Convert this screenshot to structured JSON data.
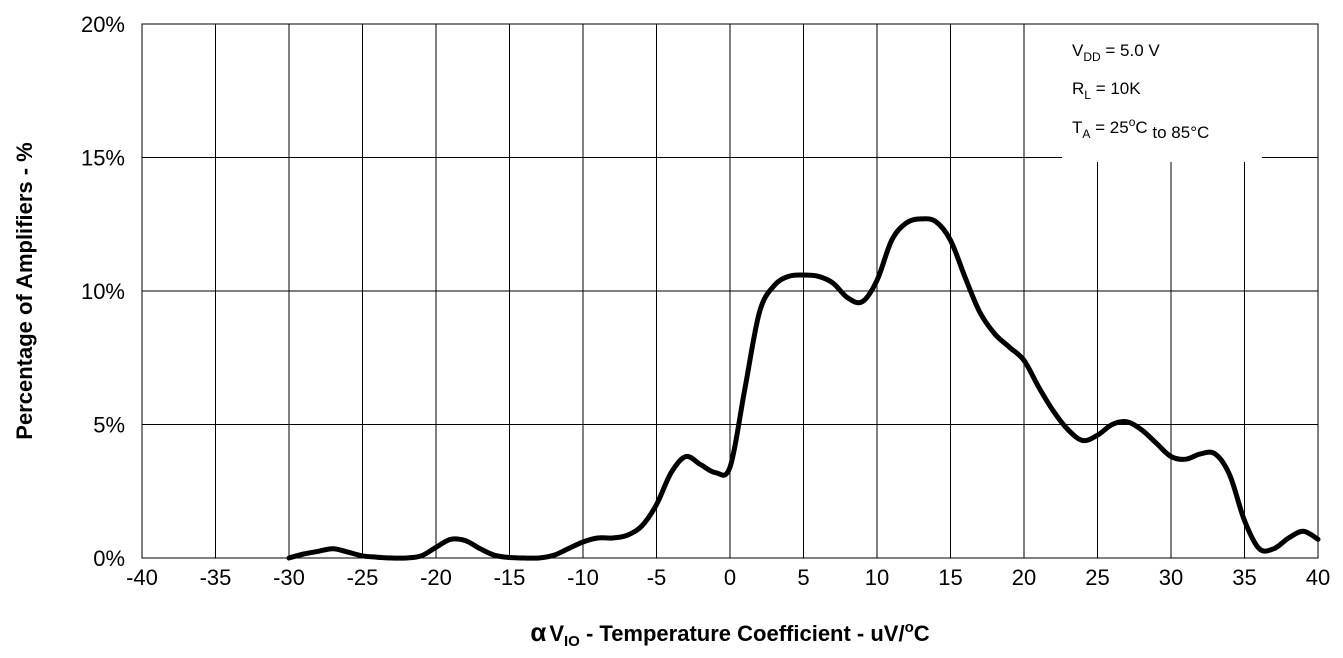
{
  "chart_data": {
    "type": "line",
    "title": "",
    "xlabel": {
      "prefix": "α",
      "main": "V",
      "sub": "IO",
      "rest": " - Temperature Coefficient - uV/",
      "sup": "o",
      "unit": "C"
    },
    "ylabel": "Percentage of Amplifiers - %",
    "xlim": [
      -40,
      40
    ],
    "ylim": [
      0,
      20
    ],
    "xticks": [
      "-40",
      "-35",
      "-30",
      "-25",
      "-20",
      "-15",
      "-10",
      "-5",
      "0",
      "5",
      "10",
      "15",
      "20",
      "25",
      "30",
      "35",
      "40"
    ],
    "yticks": [
      "0%",
      "5%",
      "10%",
      "15%",
      "20%"
    ],
    "grid": true,
    "series": [
      {
        "color": "#000000",
        "x": [
          -30,
          -29,
          -28,
          -27,
          -26,
          -25,
          -24,
          -23,
          -22,
          -21,
          -20,
          -19,
          -18,
          -17,
          -16,
          -15,
          -14,
          -13,
          -12,
          -11,
          -10,
          -9,
          -8,
          -7,
          -6,
          -5,
          -4,
          -3,
          -2,
          -1,
          0,
          1,
          2,
          3,
          4,
          5,
          6,
          7,
          8,
          9,
          10,
          11,
          12,
          13,
          14,
          15,
          16,
          17,
          18,
          19,
          20,
          21,
          22,
          23,
          24,
          25,
          26,
          27,
          28,
          29,
          30,
          31,
          32,
          33,
          34,
          35,
          36,
          37,
          38,
          39,
          40
        ],
        "y": [
          0,
          0.15,
          0.25,
          0.35,
          0.22,
          0.08,
          0.03,
          0,
          0,
          0.08,
          0.4,
          0.7,
          0.65,
          0.35,
          0.1,
          0.02,
          0,
          0,
          0.1,
          0.35,
          0.6,
          0.75,
          0.75,
          0.85,
          1.2,
          2,
          3.2,
          3.8,
          3.5,
          3.2,
          3.4,
          6.3,
          9.2,
          10.2,
          10.55,
          10.6,
          10.55,
          10.3,
          9.75,
          9.6,
          10.4,
          11.9,
          12.55,
          12.7,
          12.6,
          11.9,
          10.5,
          9.2,
          8.4,
          7.9,
          7.4,
          6.4,
          5.5,
          4.8,
          4.4,
          4.6,
          5,
          5.1,
          4.8,
          4.3,
          3.8,
          3.7,
          3.9,
          3.9,
          3.1,
          1.4,
          0.35,
          0.35,
          0.75,
          1,
          0.7
        ]
      }
    ],
    "annotation": {
      "line1": {
        "main": "V",
        "sub": "DD",
        "rest": " = 5.0 V"
      },
      "line2": {
        "main": "R",
        "sub": "L",
        "rest": " = 10K"
      },
      "line3": {
        "main": "T",
        "sub": "A",
        "rest": " = 25",
        "sup": "o",
        "unit": "C",
        "tail": " to 85°C"
      },
      "placement": "top-right"
    }
  }
}
